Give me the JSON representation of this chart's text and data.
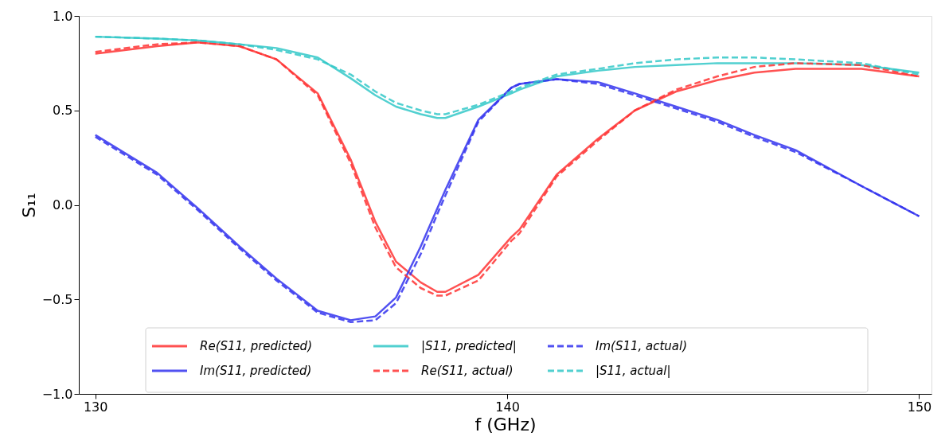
{
  "chart_data": {
    "type": "line",
    "xlabel": "f (GHz)",
    "ylabel": "S₁₁",
    "xlim": [
      129.6,
      150.3
    ],
    "ylim": [
      -1.0,
      1.0
    ],
    "xticks": [
      130,
      140,
      150
    ],
    "yticks": [
      {
        "value": -1.0,
        "label": "−1.0"
      },
      {
        "value": -0.5,
        "label": "−0.5"
      },
      {
        "value": 0.0,
        "label": "0.0"
      },
      {
        "value": 0.5,
        "label": "0.5"
      },
      {
        "value": 1.0,
        "label": "1.0"
      }
    ],
    "grid": false,
    "legend": "bottom",
    "marker": "none",
    "x": [
      130,
      131.5,
      132.5,
      133.5,
      134.4,
      135.4,
      136.2,
      136.8,
      137.3,
      137.9,
      138.3,
      138.5,
      139.3,
      140.1,
      140.3,
      141.2,
      142.2,
      143.1,
      144.1,
      145.1,
      146,
      147,
      148.6,
      150
    ],
    "series": [
      {
        "name": "Re(S11, predicted)",
        "color": "#ff3232",
        "line_style": "solid",
        "values": [
          0.8,
          0.84,
          0.86,
          0.84,
          0.77,
          0.59,
          0.24,
          -0.09,
          -0.3,
          -0.41,
          -0.46,
          -0.46,
          -0.37,
          -0.17,
          -0.13,
          0.16,
          0.35,
          0.5,
          0.6,
          0.66,
          0.7,
          0.72,
          0.72,
          0.68
        ]
      },
      {
        "name": "Im(S11, predicted)",
        "color": "#3232ee",
        "line_style": "solid",
        "values": [
          0.37,
          0.17,
          -0.02,
          -0.22,
          -0.39,
          -0.56,
          -0.61,
          -0.59,
          -0.49,
          -0.22,
          -0.02,
          0.08,
          0.45,
          0.62,
          0.64,
          0.665,
          0.65,
          0.59,
          0.52,
          0.45,
          0.37,
          0.29,
          0.1,
          -0.06
        ]
      },
      {
        "name": "|S11, predicted|",
        "color": "#32c8c8",
        "line_style": "solid",
        "values": [
          0.89,
          0.88,
          0.87,
          0.85,
          0.83,
          0.78,
          0.67,
          0.58,
          0.52,
          0.48,
          0.46,
          0.46,
          0.52,
          0.59,
          0.61,
          0.68,
          0.71,
          0.73,
          0.74,
          0.75,
          0.75,
          0.75,
          0.74,
          0.7
        ]
      },
      {
        "name": "Re(S11, actual)",
        "color": "#ff3232",
        "line_style": "dashed",
        "values": [
          0.81,
          0.85,
          0.86,
          0.84,
          0.77,
          0.58,
          0.22,
          -0.12,
          -0.33,
          -0.44,
          -0.48,
          -0.48,
          -0.4,
          -0.19,
          -0.15,
          0.15,
          0.34,
          0.5,
          0.61,
          0.68,
          0.73,
          0.75,
          0.74,
          0.68
        ]
      },
      {
        "name": "Im(S11, actual)",
        "color": "#3232ee",
        "line_style": "dashed",
        "values": [
          0.36,
          0.16,
          -0.03,
          -0.23,
          -0.4,
          -0.57,
          -0.62,
          -0.61,
          -0.52,
          -0.26,
          -0.05,
          0.05,
          0.44,
          0.62,
          0.64,
          0.665,
          0.64,
          0.58,
          0.51,
          0.44,
          0.36,
          0.28,
          0.1,
          -0.06
        ]
      },
      {
        "name": "|S11, actual|",
        "color": "#32c8c8",
        "line_style": "dashed",
        "values": [
          0.89,
          0.88,
          0.87,
          0.85,
          0.82,
          0.77,
          0.69,
          0.6,
          0.54,
          0.5,
          0.48,
          0.48,
          0.53,
          0.6,
          0.62,
          0.69,
          0.72,
          0.75,
          0.77,
          0.78,
          0.78,
          0.77,
          0.75,
          0.69
        ]
      }
    ]
  }
}
